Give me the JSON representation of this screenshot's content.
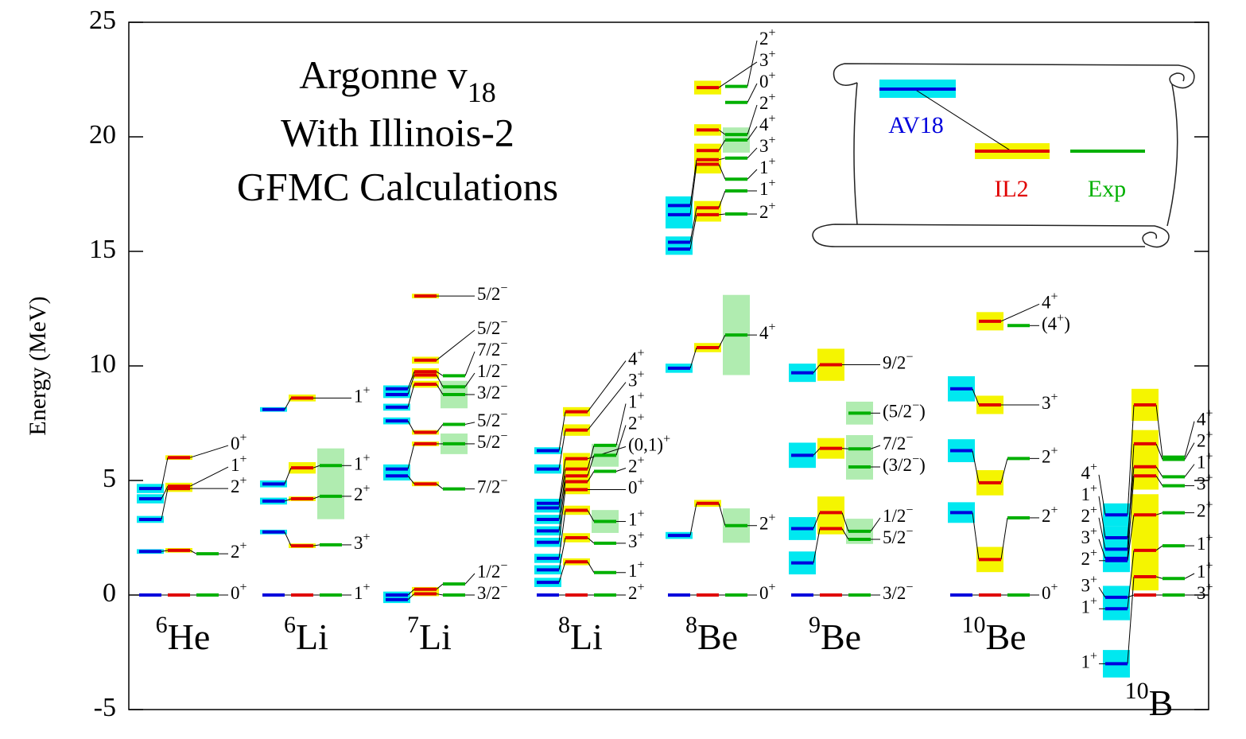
{
  "chart_data": {
    "type": "level-scheme",
    "title": {
      "main": "Argonne v",
      "subscript": "18"
    },
    "subtitle_lines": [
      "With Illinois-2",
      "GFMC Calculations"
    ],
    "y_label": "Energy (MeV)",
    "ylim": [
      -5,
      25
    ],
    "yticks": [
      -5,
      0,
      5,
      10,
      15,
      20,
      25
    ],
    "series": [
      {
        "name": "AV18",
        "color": "#0000dd",
        "box_color": "#00e8f0"
      },
      {
        "name": "IL2",
        "color": "#e00000",
        "box_color": "#f5f500"
      },
      {
        "name": "Exp",
        "color": "#00b000",
        "box_color": "#b0ecb0"
      }
    ],
    "nuclei": [
      {
        "mass": "6",
        "element": "He",
        "levels": [
          {
            "label": {
              "j": "0",
              "p": "+"
            },
            "av": 0,
            "av_err": null,
            "il": 0,
            "il_err": null,
            "exp": 0,
            "exp_err": null
          },
          {
            "label": {
              "j": "2",
              "p": "+"
            },
            "av": 1.9,
            "av_err": 0.1,
            "il": 1.95,
            "il_err": 0.1,
            "exp": 1.8,
            "exp_err": null
          },
          {
            "label": {
              "j": "2",
              "p": "+"
            },
            "av": 3.3,
            "av_err": 0.15,
            "il": 4.65,
            "il_err": 0.15,
            "exp": null,
            "exp_err": null
          },
          {
            "label": {
              "j": "1",
              "p": "+"
            },
            "av": 4.2,
            "av_err": 0.2,
            "il": 4.75,
            "il_err": 0.15,
            "exp": null,
            "exp_err": null
          },
          {
            "label": {
              "j": "0",
              "p": "+"
            },
            "av": 4.65,
            "av_err": 0.2,
            "il": 6.0,
            "il_err": 0.1,
            "exp": null,
            "exp_err": null
          }
        ]
      },
      {
        "mass": "6",
        "element": "Li",
        "levels": [
          {
            "label": {
              "j": "1",
              "p": "+"
            },
            "av": 0,
            "av_err": null,
            "il": 0,
            "il_err": null,
            "exp": 0,
            "exp_err": null
          },
          {
            "label": {
              "j": "3",
              "p": "+"
            },
            "av": 2.75,
            "av_err": 0.1,
            "il": 2.15,
            "il_err": 0.1,
            "exp": 2.19,
            "exp_err": null
          },
          {
            "label": {
              "j": "2",
              "p": "+"
            },
            "av": 4.1,
            "av_err": 0.15,
            "il": 4.2,
            "il_err": 0.1,
            "exp": 4.31,
            "exp_err": 1.0
          },
          {
            "label": {
              "j": "1",
              "p": "+"
            },
            "av": 4.85,
            "av_err": 0.15,
            "il": 5.55,
            "il_err": 0.25,
            "exp": 5.65,
            "exp_err": 0.75
          },
          {
            "label": {
              "j": "1",
              "p": "+"
            },
            "av": 8.1,
            "av_err": 0.1,
            "il": 8.6,
            "il_err": 0.15,
            "exp": null,
            "exp_err": null
          }
        ]
      },
      {
        "mass": "7",
        "element": "Li",
        "levels": [
          {
            "label": {
              "j": "3/2",
              "p": "−"
            },
            "av": -0.2,
            "av_err": 0.15,
            "il": 0.05,
            "il_err": 0.1,
            "exp": 0,
            "exp_err": null
          },
          {
            "label": {
              "j": "1/2",
              "p": "−"
            },
            "av": 0.0,
            "av_err": 0.15,
            "il": 0.25,
            "il_err": 0.1,
            "exp": 0.48,
            "exp_err": null
          },
          {
            "label": {
              "j": "7/2",
              "p": "−"
            },
            "av": 5.2,
            "av_err": 0.2,
            "il": 4.85,
            "il_err": 0.1,
            "exp": 4.63,
            "exp_err": null
          },
          {
            "label": {
              "j": "5/2",
              "p": "−"
            },
            "av": 5.5,
            "av_err": 0.2,
            "il": 6.6,
            "il_err": 0.1,
            "exp": 6.6,
            "exp_err": 0.45
          },
          {
            "label": {
              "j": "5/2",
              "p": "−"
            },
            "av": 7.6,
            "av_err": 0.15,
            "il": 7.1,
            "il_err": 0.1,
            "exp": 7.45,
            "exp_err": null
          },
          {
            "label": {
              "j": "3/2",
              "p": "−"
            },
            "av": 8.2,
            "av_err": 0.15,
            "il": 9.2,
            "il_err": 0.15,
            "exp": 8.75,
            "exp_err": 0.6
          },
          {
            "label": {
              "j": "1/2",
              "p": "−"
            },
            "av": 8.75,
            "av_err": 0.15,
            "il": 9.6,
            "il_err": 0.15,
            "exp": 9.09,
            "exp_err": null
          },
          {
            "label": {
              "j": "7/2",
              "p": "−"
            },
            "av": 9.0,
            "av_err": 0.15,
            "il": 9.75,
            "il_err": 0.15,
            "exp": 9.57,
            "exp_err": null
          },
          {
            "label": {
              "j": "5/2",
              "p": "−"
            },
            "av": null,
            "av_err": null,
            "il": 10.25,
            "il_err": 0.15,
            "exp": null,
            "exp_err": null
          },
          {
            "label": {
              "j": "5/2",
              "p": "−"
            },
            "av": null,
            "av_err": null,
            "il": 13.05,
            "il_err": 0.1,
            "exp": null,
            "exp_err": null
          }
        ]
      },
      {
        "mass": "8",
        "element": "Li",
        "levels": [
          {
            "label": {
              "j": "2",
              "p": "+"
            },
            "av": 0,
            "av_err": null,
            "il": 0,
            "il_err": null,
            "exp": 0,
            "exp_err": null
          },
          {
            "label": {
              "j": "1",
              "p": "+"
            },
            "av": 0.55,
            "av_err": 0.2,
            "il": 1.45,
            "il_err": 0.15,
            "exp": 0.98,
            "exp_err": null
          },
          {
            "label": {
              "j": "3",
              "p": "+"
            },
            "av": 1.1,
            "av_err": 0.2,
            "il": 2.5,
            "il_err": 0.2,
            "exp": 2.26,
            "exp_err": null
          },
          {
            "label": {
              "j": "1",
              "p": "+"
            },
            "av": 1.6,
            "av_err": 0.2,
            "il": 3.7,
            "il_err": 0.2,
            "exp": 3.21,
            "exp_err": 0.5
          },
          {
            "label": {
              "j": "0",
              "p": "+"
            },
            "av": 2.3,
            "av_err": 0.2,
            "il": 4.6,
            "il_err": 0.2,
            "exp": null,
            "exp_err": null
          },
          {
            "label": {
              "j": "2",
              "p": "+"
            },
            "av": 2.8,
            "av_err": 0.2,
            "il": 4.95,
            "il_err": 0.25,
            "exp": 5.4,
            "exp_err": null
          },
          {
            "label": {
              "j": "2",
              "p": "+"
            },
            "av": 3.3,
            "av_err": 0.2,
            "il": 5.2,
            "il_err": 0.25,
            "exp": 6.1,
            "exp_err": 0.5
          },
          {
            "label": {
              "j": "1",
              "p": "+"
            },
            "av": 3.8,
            "av_err": 0.2,
            "il": 5.5,
            "il_err": 0.25,
            "exp": 6.53,
            "exp_err": null
          },
          {
            "label": {
              "j": "(0,1)",
              "p": "+"
            },
            "av": 4.0,
            "av_err": 0.2,
            "il": 5.95,
            "il_err": 0.25,
            "exp": null,
            "exp_err": null
          },
          {
            "label": {
              "j": "3",
              "p": "+"
            },
            "av": 5.5,
            "av_err": 0.2,
            "il": 7.2,
            "il_err": 0.25,
            "exp": null,
            "exp_err": null
          },
          {
            "label": {
              "j": "4",
              "p": "+"
            },
            "av": 6.3,
            "av_err": 0.15,
            "il": 8.0,
            "il_err": 0.2,
            "exp": null,
            "exp_err": null
          }
        ]
      },
      {
        "mass": "8",
        "element": "Be",
        "levels": [
          {
            "label": {
              "j": "0",
              "p": "+"
            },
            "av": 0,
            "av_err": null,
            "il": 0,
            "il_err": null,
            "exp": 0,
            "exp_err": null
          },
          {
            "label": {
              "j": "2",
              "p": "+"
            },
            "av": 2.6,
            "av_err": 0.15,
            "il": 4.0,
            "il_err": 0.15,
            "exp": 3.03,
            "exp_err": 0.75
          },
          {
            "label": {
              "j": "4",
              "p": "+"
            },
            "av": 9.9,
            "av_err": 0.2,
            "il": 10.8,
            "il_err": 0.2,
            "exp": 11.35,
            "exp_err": 1.75
          },
          {
            "label": {
              "j": "2",
              "p": "+"
            },
            "av": 15.1,
            "av_err": 0.25,
            "il": 16.6,
            "il_err": 0.3,
            "exp": 16.63,
            "exp_err": null
          },
          {
            "label": {
              "j": "1",
              "p": "+"
            },
            "av": 15.4,
            "av_err": 0.25,
            "il": 16.9,
            "il_err": 0.3,
            "exp": 17.64,
            "exp_err": null
          },
          {
            "label": {
              "j": "1",
              "p": "+"
            },
            "av": 16.6,
            "av_err": 0.6,
            "il": 18.8,
            "il_err": 0.4,
            "exp": 18.15,
            "exp_err": null
          },
          {
            "label": {
              "j": "3",
              "p": "+"
            },
            "av": 17.0,
            "av_err": 0.4,
            "il": 19.0,
            "il_err": 0.4,
            "exp": 19.07,
            "exp_err": null
          },
          {
            "label": {
              "j": "4",
              "p": "+"
            },
            "av": null,
            "av_err": null,
            "il": 19.4,
            "il_err": 0.3,
            "exp": 19.86,
            "exp_err": 0.55
          },
          {
            "label": {
              "j": "2",
              "p": "+"
            },
            "av": null,
            "av_err": null,
            "il": 20.3,
            "il_err": 0.25,
            "exp": 20.1,
            "exp_err": null
          },
          {
            "label": {
              "j": "0",
              "p": "+"
            },
            "av": null,
            "av_err": null,
            "il": null,
            "il_err": null,
            "exp": 21.5,
            "exp_err": null
          },
          {
            "label": {
              "j": "3",
              "p": "+"
            },
            "av": null,
            "av_err": null,
            "il": 22.15,
            "il_err": 0.3,
            "exp": null,
            "exp_err": null
          },
          {
            "label": {
              "j": "2",
              "p": "+"
            },
            "av": null,
            "av_err": null,
            "il": null,
            "il_err": null,
            "exp": 22.2,
            "exp_err": null
          }
        ]
      },
      {
        "mass": "9",
        "element": "Be",
        "levels": [
          {
            "label": {
              "j": "3/2",
              "p": "−"
            },
            "av": 0,
            "av_err": null,
            "il": 0,
            "il_err": null,
            "exp": 0,
            "exp_err": null
          },
          {
            "label": {
              "j": "5/2",
              "p": "−"
            },
            "av": 1.4,
            "av_err": 0.5,
            "il": 2.9,
            "il_err": 0.25,
            "exp": 2.43,
            "exp_err": null
          },
          {
            "label": {
              "j": "1/2",
              "p": "−"
            },
            "av": 2.9,
            "av_err": 0.5,
            "il": 3.6,
            "il_err": 0.7,
            "exp": 2.78,
            "exp_err": 0.55
          },
          {
            "label": {
              "pre": "(",
              "j": "3/2",
              "p": "−",
              "post": ")"
            },
            "av": null,
            "av_err": null,
            "il": null,
            "il_err": null,
            "exp": 5.59,
            "exp_err": 0.55
          },
          {
            "label": {
              "j": "7/2",
              "p": "−"
            },
            "av": 6.1,
            "av_err": 0.55,
            "il": 6.4,
            "il_err": 0.45,
            "exp": 6.38,
            "exp_err": 0.6
          },
          {
            "label": {
              "pre": "(",
              "j": "5/2",
              "p": "−",
              "post": ")"
            },
            "av": null,
            "av_err": null,
            "il": null,
            "il_err": null,
            "exp": 7.94,
            "exp_err": 0.5
          },
          {
            "label": {
              "j": "9/2",
              "p": "−"
            },
            "av": 9.7,
            "av_err": 0.4,
            "il": 10.05,
            "il_err": 0.7,
            "exp": null,
            "exp_err": null
          }
        ]
      },
      {
        "mass": "10",
        "element": "Be",
        "levels": [
          {
            "label": {
              "j": "0",
              "p": "+"
            },
            "av": 0,
            "av_err": null,
            "il": 0,
            "il_err": null,
            "exp": 0,
            "exp_err": null
          },
          {
            "label": {
              "j": "2",
              "p": "+"
            },
            "av": 3.6,
            "av_err": 0.45,
            "il": 1.55,
            "il_err": 0.55,
            "exp": 3.37,
            "exp_err": null
          },
          {
            "label": {
              "j": "2",
              "p": "+"
            },
            "av": 6.3,
            "av_err": 0.5,
            "il": 4.9,
            "il_err": 0.55,
            "exp": 5.96,
            "exp_err": null
          },
          {
            "label": {
              "j": "3",
              "p": "+"
            },
            "av": 9.0,
            "av_err": 0.55,
            "il": 8.3,
            "il_err": 0.4,
            "exp": null,
            "exp_err": null
          },
          {
            "label": {
              "j": "4",
              "p": "+"
            },
            "av": null,
            "av_err": null,
            "il": 11.95,
            "il_err": 0.4,
            "exp": null,
            "exp_err": null
          },
          {
            "label": {
              "pre": "(",
              "j": "4",
              "p": "+",
              "post": ")"
            },
            "av": null,
            "av_err": null,
            "il": null,
            "il_err": null,
            "exp": 11.76,
            "exp_err": null
          }
        ]
      },
      {
        "mass": "10",
        "element": "B",
        "levels": [
          {
            "label": {
              "j": "3",
              "p": "+"
            },
            "left_label": {
              "j": "3",
              "p": "+"
            },
            "av": -0.1,
            "av_err": 0.5,
            "il": 0,
            "il_err": null,
            "exp": 0,
            "exp_err": null
          },
          {
            "label": {
              "j": "1",
              "p": "+"
            },
            "left_label": {
              "j": "1",
              "p": "+"
            },
            "av": -3.0,
            "av_err": 0.6,
            "il": 0.8,
            "il_err": 0.6,
            "exp": 0.72,
            "exp_err": null
          },
          {
            "label": {
              "j": "1",
              "p": "+"
            },
            "left_label": {
              "j": "1",
              "p": "+"
            },
            "av": -0.6,
            "av_err": 0.5,
            "il": 1.95,
            "il_err": 0.8,
            "exp": 2.15,
            "exp_err": null
          },
          {
            "label": {
              "j": "2",
              "p": "+"
            },
            "left_label": {
              "j": "2",
              "p": "+"
            },
            "av": 1.5,
            "av_err": 0.5,
            "il": 3.5,
            "il_err": 0.9,
            "exp": 3.59,
            "exp_err": null
          },
          {
            "label": {
              "j": "3",
              "p": "+"
            },
            "left_label": {
              "j": "3",
              "p": "+"
            },
            "av": 1.6,
            "av_err": 0.5,
            "il": 5.2,
            "il_err": 0.6,
            "exp": 4.77,
            "exp_err": null
          },
          {
            "label": {
              "j": "1",
              "p": "+"
            },
            "left_label": {
              "j": "1",
              "p": "+"
            },
            "av": 2.5,
            "av_err": 0.5,
            "il": 5.6,
            "il_err": 0.6,
            "exp": 5.16,
            "exp_err": null
          },
          {
            "label": {
              "j": "2",
              "p": "+"
            },
            "left_label": {
              "j": "2",
              "p": "+"
            },
            "av": 2.0,
            "av_err": 0.5,
            "il": 6.6,
            "il_err": 0.6,
            "exp": 5.92,
            "exp_err": null
          },
          {
            "label": {
              "j": "4",
              "p": "+"
            },
            "left_label": {
              "j": "4",
              "p": "+"
            },
            "av": 3.5,
            "av_err": 0.5,
            "il": 8.3,
            "il_err": 0.7,
            "exp": 6.02,
            "exp_err": null
          }
        ]
      }
    ]
  }
}
